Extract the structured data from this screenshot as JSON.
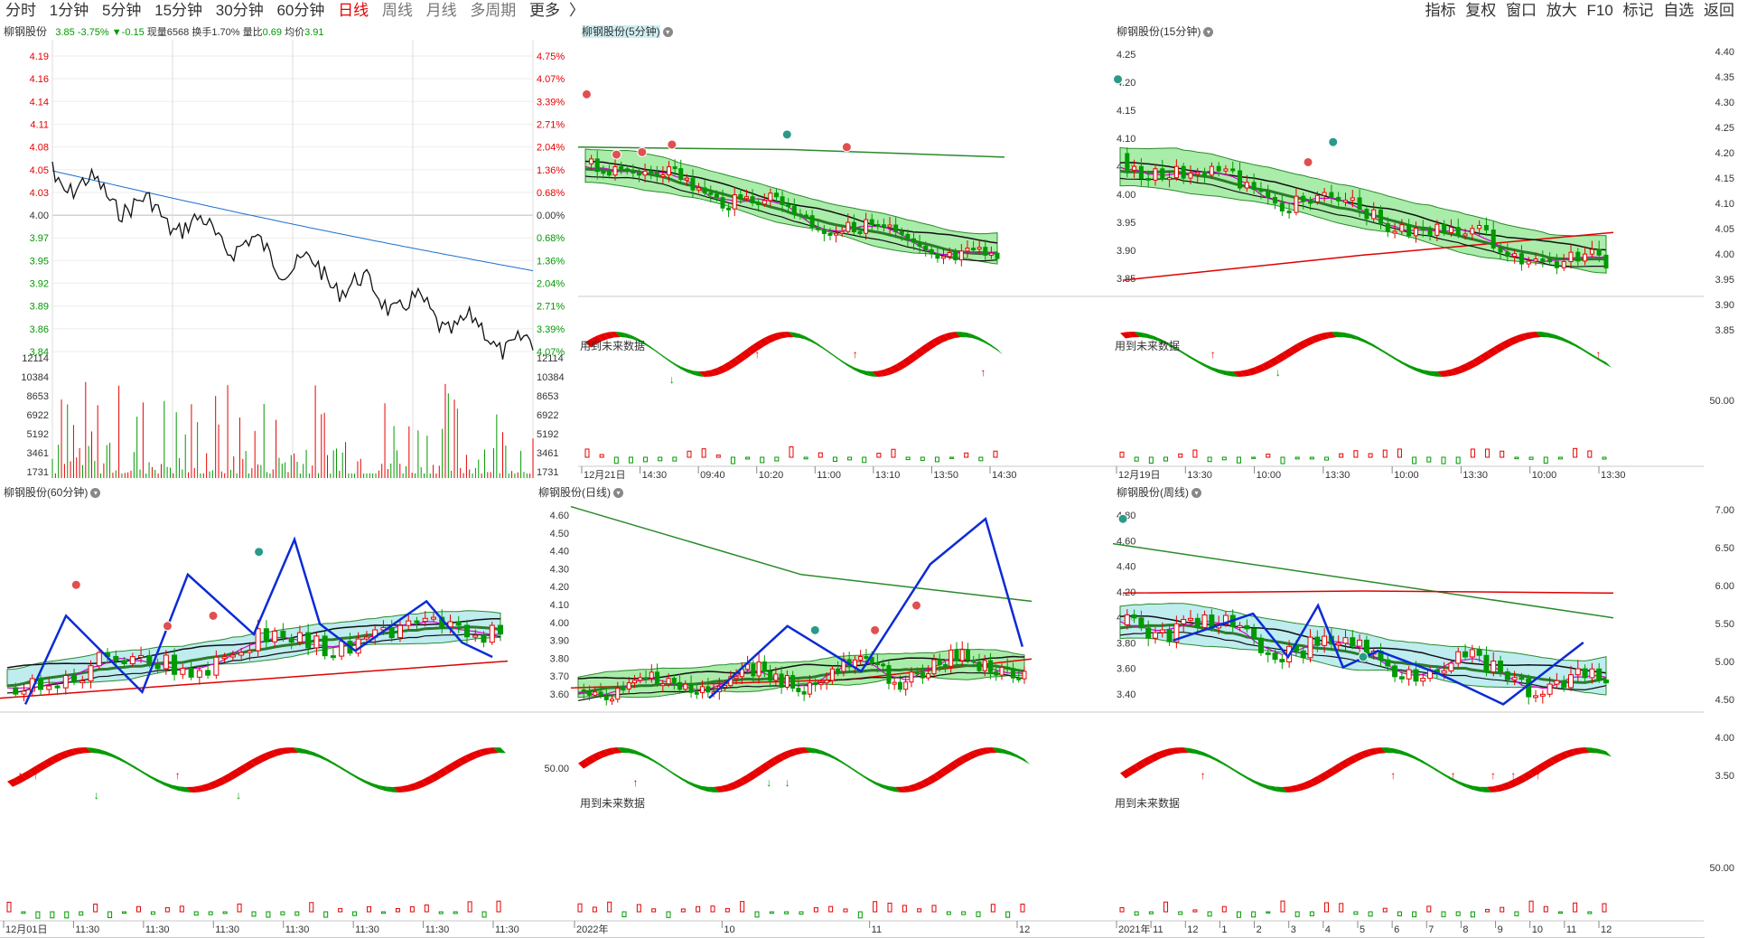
{
  "toolbar": {
    "periods": [
      "分时",
      "1分钟",
      "5分钟",
      "15分钟",
      "30分钟",
      "60分钟",
      "日线",
      "周线",
      "月线",
      "多周期",
      "更多"
    ],
    "active_period": "日线",
    "right_items": [
      "指标",
      "复权",
      "窗口",
      "放大",
      "F10",
      "标记",
      "自选",
      "返回"
    ]
  },
  "colors": {
    "up": "#e60000",
    "down": "#009900",
    "avg": "#1e6fd0",
    "band": "#8ee68e",
    "band_cyan": "#a8e6ea",
    "zigzag": "#0b2bd6"
  },
  "panels": {
    "intraday": {
      "title": "柳钢股份",
      "price": "3.85",
      "pct": "-3.75%",
      "chg": "▼-0.15",
      "volume_label": "现量",
      "volume": "6568",
      "turnover_label": "换手",
      "turnover": "1.70%",
      "ratio_label": "量比",
      "ratio": "0.69",
      "avg_label": "均价",
      "avg": "3.91",
      "price_ticks": [
        "4.19",
        "4.16",
        "4.14",
        "4.11",
        "4.08",
        "4.05",
        "4.03",
        "4.00",
        "3.97",
        "3.95",
        "3.92",
        "3.89",
        "3.86",
        "3.84"
      ],
      "pct_ticks": [
        "4.75%",
        "4.07%",
        "3.39%",
        "2.71%",
        "2.04%",
        "1.36%",
        "0.68%",
        "0.00%",
        "0.68%",
        "1.36%",
        "2.04%",
        "2.71%",
        "3.39%",
        "4.07%"
      ],
      "vol_ticks": [
        "12114",
        "10384",
        "8653",
        "6922",
        "5192",
        "3461",
        "1731"
      ],
      "vol_ticks_right": [
        "12114",
        "10384",
        "8653",
        "6922",
        "5192",
        "3461",
        "1731"
      ]
    },
    "m5": {
      "title": "柳钢股份(5分钟)",
      "future": "用到未来数据",
      "x_labels": [
        "12月21日",
        "14:30",
        "09:40",
        "10:20",
        "11:00",
        "13:10",
        "13:50",
        "14:30"
      ]
    },
    "m15": {
      "title": "柳钢股份(15分钟)",
      "future": "用到未来数据",
      "price_ticks": [
        "4.25",
        "4.20",
        "4.15",
        "4.10",
        "4.05",
        "4.00",
        "3.95",
        "3.90",
        "3.85"
      ],
      "osc_tick": "50.00",
      "x_labels": [
        "12月19日",
        "13:30",
        "10:00",
        "13:30",
        "10:00",
        "13:30",
        "10:00",
        "13:30"
      ]
    },
    "m60": {
      "title": "柳钢股份(60分钟)",
      "x_labels": [
        "12月01日",
        "11:30",
        "11:30",
        "11:30",
        "11:30",
        "11:30",
        "11:30",
        "11:30"
      ]
    },
    "daily": {
      "title": "柳钢股份(日线)",
      "future": "用到未来数据",
      "price_ticks": [
        "4.60",
        "4.50",
        "4.40",
        "4.30",
        "4.20",
        "4.10",
        "4.00",
        "3.90",
        "3.80",
        "3.70",
        "3.60"
      ],
      "osc_tick": "50.00",
      "x_labels": [
        "2022年",
        "10",
        "11",
        "12"
      ]
    },
    "weekly": {
      "title": "柳钢股份(周线)",
      "future": "用到未来数据",
      "price_ticks": [
        "4.80",
        "4.60",
        "4.40",
        "4.20",
        "4.00",
        "3.80",
        "3.60",
        "3.40"
      ],
      "osc_tick": "50.00",
      "x_labels": [
        "2021年",
        "11",
        "12",
        "1",
        "2",
        "3",
        "4",
        "5",
        "6",
        "7",
        "8",
        "9",
        "10",
        "11",
        "12"
      ]
    }
  },
  "outer_axis": {
    "upper": [
      "4.40",
      "4.35",
      "4.30",
      "4.25",
      "4.20",
      "4.15",
      "4.10",
      "4.05",
      "4.00",
      "3.95",
      "3.90",
      "3.85",
      "50.00"
    ],
    "lower": [
      "7.00",
      "6.50",
      "6.00",
      "5.50",
      "5.00",
      "4.50",
      "4.00",
      "3.50",
      "50.00"
    ]
  }
}
